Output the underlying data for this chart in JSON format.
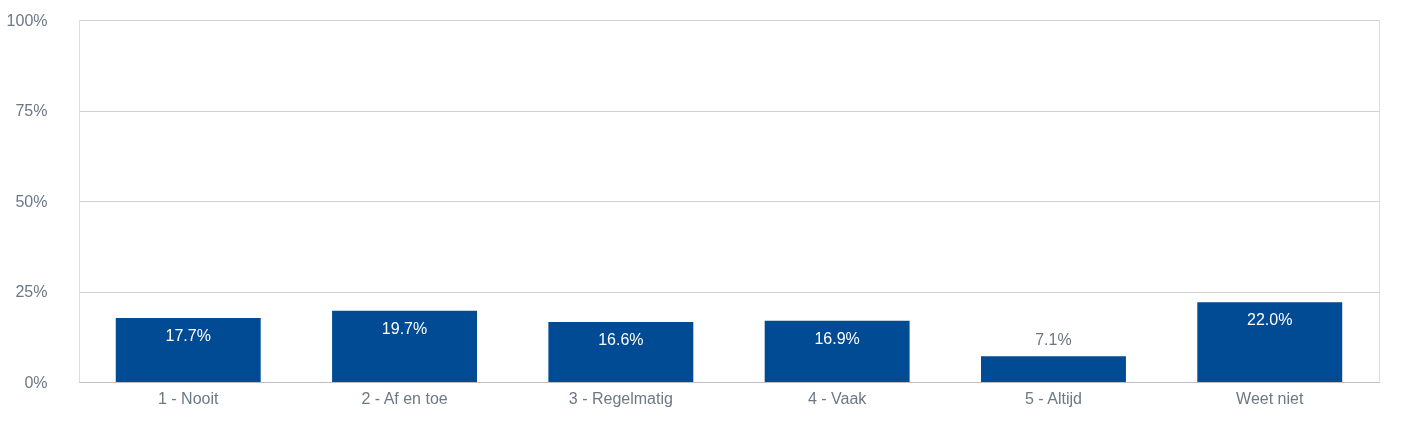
{
  "chart_data": {
    "type": "bar",
    "categories": [
      "1 - Nooit",
      "2 - Af en toe",
      "3 - Regelmatig",
      "4 - Vaak",
      "5 - Altijd",
      "Weet niet"
    ],
    "values": [
      17.7,
      19.7,
      16.6,
      16.9,
      7.1,
      22.0
    ],
    "value_labels": [
      "17.7%",
      "19.7%",
      "16.6%",
      "16.9%",
      "7.1%",
      "22.0%"
    ],
    "color": "#004b93",
    "ylim": [
      0,
      100
    ],
    "yticks": [
      {
        "value": 0,
        "label": "0%"
      },
      {
        "value": 25,
        "label": "25%"
      },
      {
        "value": 50,
        "label": "50%"
      },
      {
        "value": 75,
        "label": "75%"
      },
      {
        "value": 100,
        "label": "100%"
      }
    ],
    "grid": "y"
  }
}
